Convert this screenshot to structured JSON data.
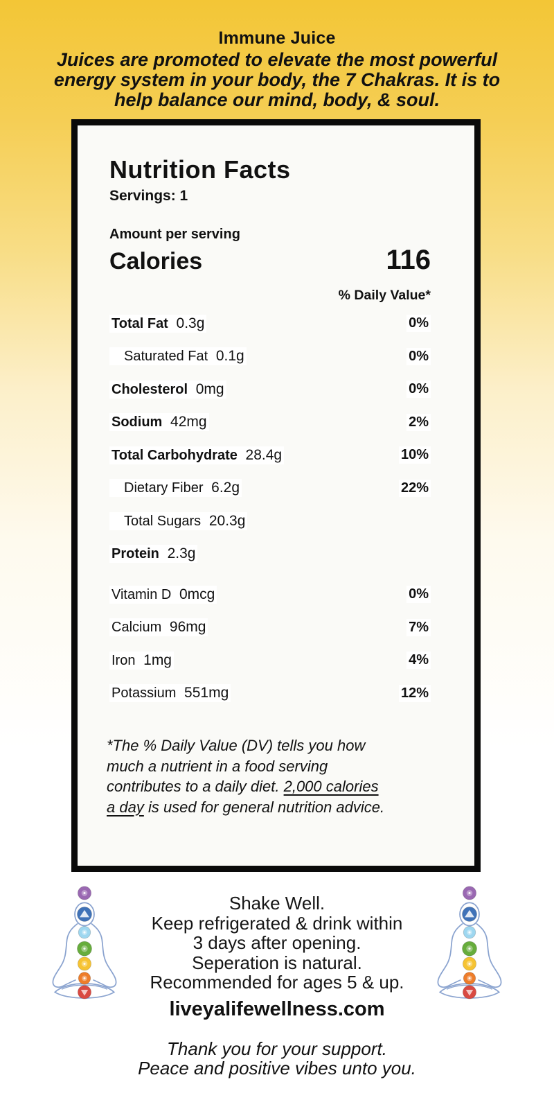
{
  "header": {
    "title": "Immune Juice",
    "subtitle_lines": [
      "Juices are promoted to elevate the most powerful",
      "energy system in your body, the 7 Chakras. It is to",
      "help balance our mind, body, & soul."
    ]
  },
  "panel": {
    "heading": "Nutrition Facts",
    "servings": "Servings: 1",
    "amount_label": "Amount per serving",
    "calories_label": "Calories",
    "calories_value": "116",
    "daily_value_header": "% Daily Value*",
    "rows": [
      {
        "label": "Total Fat",
        "value": "0.3g",
        "dv": "0%",
        "style": "bold"
      },
      {
        "label": "Saturated Fat",
        "value": "0.1g",
        "dv": "0%",
        "style": "indent"
      },
      {
        "label": "Cholesterol",
        "value": "0mg",
        "dv": "0%",
        "style": "bold"
      },
      {
        "label": "Sodium",
        "value": "42mg",
        "dv": "2%",
        "style": "bold"
      },
      {
        "label": "Total Carbohydrate",
        "value": "28.4g",
        "dv": "10%",
        "style": "bold"
      },
      {
        "label": "Dietary Fiber",
        "value": "6.2g",
        "dv": "22%",
        "style": "indent"
      },
      {
        "label": "Total Sugars",
        "value": "20.3g",
        "dv": "",
        "style": "indent"
      },
      {
        "label": "Protein",
        "value": "2.3g",
        "dv": "",
        "style": "bold"
      },
      {
        "label": "Vitamin D",
        "value": "0mcg",
        "dv": "0%",
        "style": "plain",
        "group": "vitamins"
      },
      {
        "label": "Calcium",
        "value": "96mg",
        "dv": "7%",
        "style": "plain",
        "group": "vitamins"
      },
      {
        "label": "Iron",
        "value": "1mg",
        "dv": "4%",
        "style": "plain",
        "group": "vitamins"
      },
      {
        "label": "Potassium",
        "value": "551mg",
        "dv": "12%",
        "style": "plain",
        "group": "vitamins"
      }
    ],
    "footnote_lines": [
      [
        {
          "text": "*The % Daily Value (DV) tells you how"
        }
      ],
      [
        {
          "text": "much a nutrient in a food serving"
        }
      ],
      [
        {
          "text": "contributes to a daily diet. "
        },
        {
          "text": "2,000 calories",
          "underline": true
        }
      ],
      [
        {
          "text": "a day",
          "underline": true
        },
        {
          "text": " is used for general nutrition advice."
        }
      ]
    ]
  },
  "footer": {
    "care_lines": [
      "Shake Well.",
      "Keep refrigerated & drink within",
      "3 days after opening.",
      "Seperation is natural.",
      "Recommended for ages 5 & up."
    ],
    "website": "liveyalifewellness.com",
    "thanks_lines": [
      "Thank you for your support.",
      "Peace and positive vibes unto you."
    ]
  },
  "chakra_figure": {
    "name": "meditating-figure-with-7-chakras",
    "outline_color": "#8aa3cf",
    "chakra_colors": [
      "#9a68b2",
      "#3f72b8",
      "#9ed7f0",
      "#67ad3c",
      "#f6c332",
      "#ee7d2a",
      "#d94a42"
    ]
  },
  "colors": {
    "background_top_gold": "#f3c636",
    "panel_border": "#0a0a0a",
    "panel_background": "#fafaf7",
    "text": "#111111"
  }
}
